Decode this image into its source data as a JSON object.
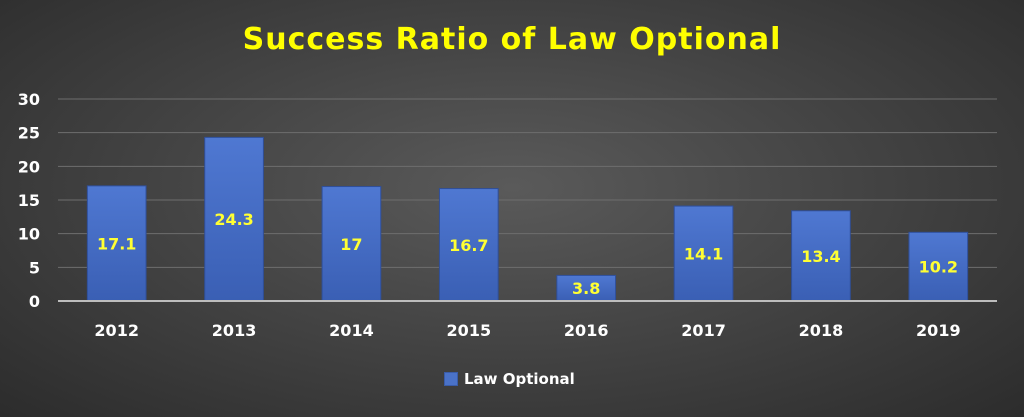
{
  "chart_data": {
    "type": "bar",
    "title": "Success Ratio of Law Optional",
    "categories": [
      "2012",
      "2013",
      "2014",
      "2015",
      "2016",
      "2017",
      "2018",
      "2019"
    ],
    "series": [
      {
        "name": "Law Optional",
        "values": [
          17.1,
          24.3,
          17,
          16.7,
          3.8,
          14.1,
          13.4,
          10.2
        ]
      }
    ],
    "data_labels": [
      "17.1",
      "24.3",
      "17",
      "16.7",
      "3.8",
      "14.1",
      "13.4",
      "10.2"
    ],
    "ylim": [
      0,
      30
    ],
    "yticks": [
      0,
      5,
      10,
      15,
      20,
      25,
      30
    ],
    "grid": true,
    "legend": "bottom-center",
    "colors": {
      "bar": "#4a72c8",
      "title": "#ffff00",
      "data_label": "#ffff33",
      "background": "#474747"
    }
  }
}
